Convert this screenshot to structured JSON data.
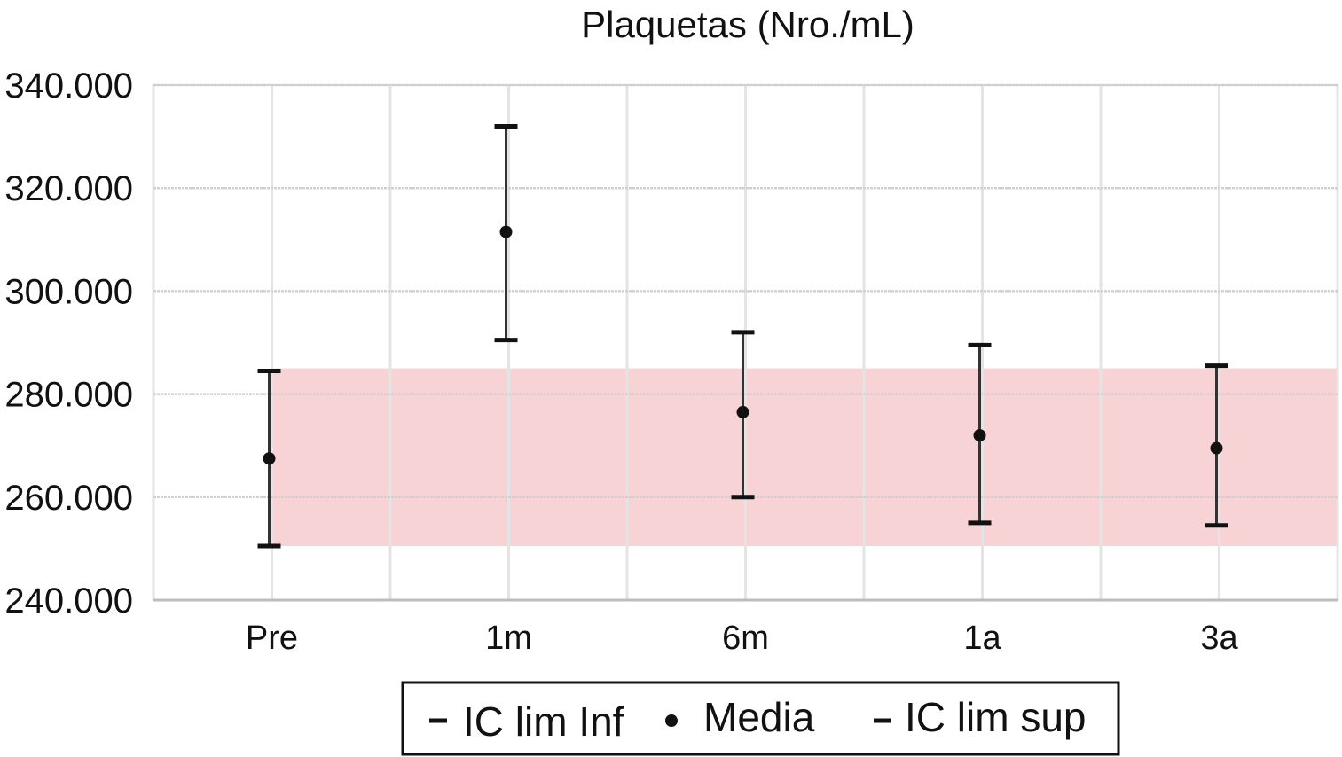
{
  "chart_data": {
    "type": "scatter",
    "title": "Plaquetas (Nro./mL)",
    "xlabel": "",
    "ylabel": "",
    "categories": [
      "Pre",
      "1m",
      "6m",
      "1a",
      "3a"
    ],
    "ylim": [
      240000,
      340000
    ],
    "yticks": [
      240000,
      260000,
      280000,
      300000,
      320000,
      340000
    ],
    "ytick_labels": [
      "240.000",
      "260.000",
      "280.000",
      "300.000",
      "320.000",
      "340.000"
    ],
    "grid": true,
    "series": [
      {
        "name": "IC lim Inf",
        "values": [
          250500,
          290500,
          260000,
          255000,
          254500
        ]
      },
      {
        "name": "Media",
        "values": [
          267500,
          311500,
          276500,
          272000,
          269500
        ]
      },
      {
        "name": "IC lim sup",
        "values": [
          284500,
          332000,
          292000,
          289500,
          285500
        ]
      }
    ],
    "reference_band": {
      "low": 250500,
      "high": 285000,
      "color": "#f8d3d5"
    },
    "legend_position": "bottom",
    "colors": {
      "marker": "#111111",
      "grid": "#d0d0d0",
      "axis": "#bdbdbd"
    }
  }
}
